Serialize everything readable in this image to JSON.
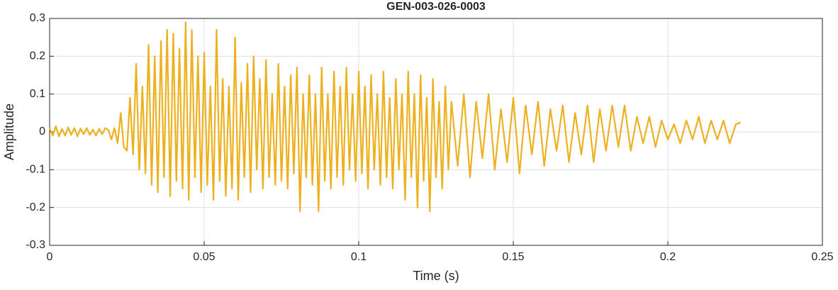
{
  "chart_data": {
    "type": "line",
    "title": "GEN-003-026-0003",
    "xlabel": "Time (s)",
    "ylabel": "Amplitude",
    "color": "#EDB120",
    "grid": true,
    "xlim": [
      0,
      0.25
    ],
    "xticks": [
      0,
      0.05,
      0.1,
      0.15,
      0.2,
      0.25
    ],
    "ylim": [
      -0.3,
      0.3
    ],
    "yticks": [
      -0.3,
      -0.2,
      -0.1,
      0,
      0.1,
      0.2,
      0.3
    ],
    "x": [
      0,
      0.001,
      0.002,
      0.003,
      0.004,
      0.005,
      0.006,
      0.007,
      0.008,
      0.009,
      0.01,
      0.011,
      0.012,
      0.013,
      0.014,
      0.015,
      0.016,
      0.017,
      0.018,
      0.019,
      0.02,
      0.021,
      0.022,
      0.023,
      0.024,
      0.025,
      0.026,
      0.027,
      0.028,
      0.029,
      0.03,
      0.031,
      0.032,
      0.033,
      0.034,
      0.035,
      0.036,
      0.037,
      0.038,
      0.039,
      0.04,
      0.041,
      0.042,
      0.043,
      0.044,
      0.045,
      0.046,
      0.047,
      0.048,
      0.049,
      0.05,
      0.051,
      0.052,
      0.053,
      0.054,
      0.055,
      0.056,
      0.057,
      0.058,
      0.059,
      0.06,
      0.061,
      0.062,
      0.063,
      0.064,
      0.065,
      0.066,
      0.067,
      0.068,
      0.069,
      0.07,
      0.071,
      0.072,
      0.073,
      0.074,
      0.075,
      0.076,
      0.077,
      0.078,
      0.079,
      0.08,
      0.081,
      0.082,
      0.083,
      0.084,
      0.085,
      0.086,
      0.087,
      0.088,
      0.089,
      0.09,
      0.091,
      0.092,
      0.093,
      0.094,
      0.095,
      0.096,
      0.097,
      0.098,
      0.099,
      0.1,
      0.101,
      0.102,
      0.103,
      0.104,
      0.105,
      0.106,
      0.107,
      0.108,
      0.109,
      0.11,
      0.111,
      0.112,
      0.113,
      0.114,
      0.115,
      0.116,
      0.117,
      0.118,
      0.119,
      0.12,
      0.121,
      0.122,
      0.123,
      0.124,
      0.125,
      0.126,
      0.127,
      0.128,
      0.129,
      0.13,
      0.132,
      0.134,
      0.136,
      0.138,
      0.14,
      0.142,
      0.144,
      0.146,
      0.148,
      0.15,
      0.152,
      0.154,
      0.156,
      0.158,
      0.16,
      0.162,
      0.164,
      0.166,
      0.168,
      0.17,
      0.172,
      0.174,
      0.176,
      0.178,
      0.18,
      0.182,
      0.184,
      0.186,
      0.188,
      0.19,
      0.192,
      0.194,
      0.196,
      0.198,
      0.2,
      0.202,
      0.204,
      0.206,
      0.208,
      0.21,
      0.212,
      0.214,
      0.216,
      0.218,
      0.22,
      0.222,
      0.2235
    ],
    "values": [
      0.01,
      -0.01,
      0.015,
      -0.012,
      0.008,
      -0.01,
      0.012,
      -0.008,
      0.01,
      -0.012,
      0.009,
      -0.006,
      0.01,
      -0.008,
      0.006,
      -0.01,
      0.008,
      -0.006,
      0.01,
      0.005,
      -0.02,
      0.01,
      -0.03,
      0.05,
      -0.04,
      -0.05,
      0.09,
      -0.06,
      0.18,
      -0.1,
      0.12,
      -0.11,
      0.23,
      -0.14,
      0.2,
      -0.16,
      0.24,
      -0.12,
      0.27,
      -0.17,
      0.26,
      -0.13,
      0.22,
      -0.15,
      0.29,
      -0.18,
      0.27,
      -0.12,
      0.2,
      -0.16,
      0.21,
      -0.14,
      0.12,
      -0.18,
      0.27,
      -0.13,
      0.14,
      -0.17,
      0.12,
      -0.15,
      0.25,
      -0.18,
      0.13,
      -0.12,
      0.18,
      -0.16,
      0.2,
      -0.1,
      0.14,
      -0.15,
      0.19,
      -0.12,
      0.1,
      -0.14,
      0.18,
      -0.13,
      0.12,
      -0.15,
      0.15,
      -0.11,
      0.17,
      -0.21,
      0.1,
      -0.12,
      0.15,
      -0.14,
      0.1,
      -0.21,
      0.17,
      -0.13,
      0.1,
      -0.15,
      0.16,
      -0.12,
      0.12,
      -0.14,
      0.17,
      -0.1,
      0.1,
      -0.13,
      0.16,
      -0.11,
      0.12,
      -0.15,
      0.15,
      -0.1,
      0.1,
      -0.14,
      0.16,
      -0.12,
      0.09,
      -0.15,
      0.14,
      -0.1,
      0.1,
      -0.18,
      0.16,
      -0.12,
      0.1,
      -0.2,
      0.15,
      -0.13,
      0.09,
      -0.21,
      0.14,
      -0.12,
      0.08,
      -0.15,
      0.12,
      -0.1,
      0.08,
      -0.09,
      0.1,
      -0.12,
      0.08,
      -0.07,
      0.1,
      -0.1,
      0.06,
      -0.08,
      0.09,
      -0.11,
      0.07,
      -0.06,
      0.08,
      -0.09,
      0.06,
      -0.05,
      0.07,
      -0.08,
      0.05,
      -0.06,
      0.07,
      -0.08,
      0.06,
      -0.05,
      0.07,
      -0.04,
      0.07,
      -0.05,
      0.04,
      -0.03,
      0.04,
      -0.04,
      0.03,
      -0.02,
      0.02,
      -0.03,
      0.03,
      -0.02,
      0.04,
      -0.03,
      0.03,
      -0.02,
      0.03,
      -0.03,
      0.02,
      0.025
    ]
  }
}
